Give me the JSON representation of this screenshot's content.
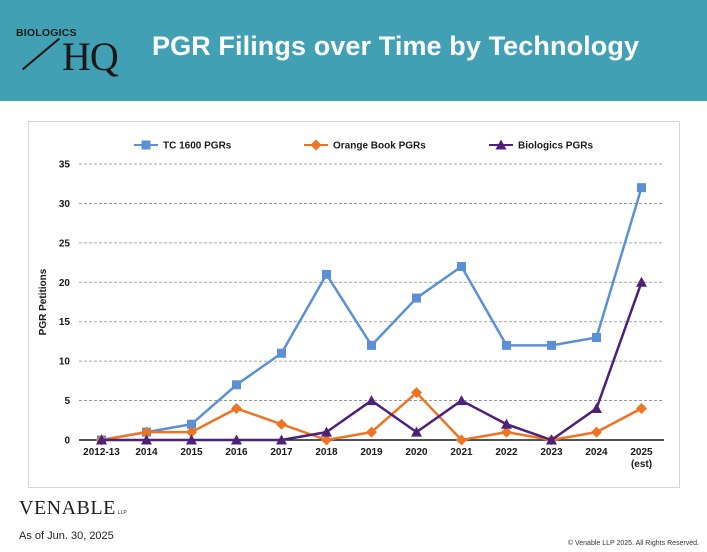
{
  "header": {
    "logo_small": "BIOLOGICS",
    "logo_big": "HQ",
    "title": "PGR Filings over Time by Technology",
    "background_color": "#41a0b4"
  },
  "footer": {
    "firm_name": "VENABLE",
    "firm_suffix": "LLP",
    "as_of": "As of Jun. 30, 2025",
    "copyright": "© Venable LLP 2025. All Rights Reserved."
  },
  "chart_data": {
    "type": "line",
    "title": "",
    "xlabel": "",
    "ylabel": "PGR Petitions",
    "categories": [
      "2012-13",
      "2014",
      "2015",
      "2016",
      "2017",
      "2018",
      "2019",
      "2020",
      "2021",
      "2022",
      "2023",
      "2024",
      "2025 (est)"
    ],
    "ylim": [
      0,
      35
    ],
    "yticks": [
      0,
      5,
      10,
      15,
      20,
      25,
      30,
      35
    ],
    "grid": true,
    "legend_position": "top",
    "series": [
      {
        "name": "TC 1600 PGRs",
        "color": "#5b8fd6",
        "marker": "square",
        "values": [
          0,
          1,
          2,
          7,
          11,
          21,
          12,
          18,
          22,
          12,
          12,
          13,
          32
        ]
      },
      {
        "name": "Orange Book PGRs",
        "color": "#ee7423",
        "marker": "diamond",
        "values": [
          0,
          1,
          1,
          4,
          2,
          0,
          1,
          6,
          0,
          1,
          0,
          1,
          4
        ]
      },
      {
        "name": "Biologics PGRs",
        "color": "#4d2178",
        "marker": "triangle",
        "values": [
          0,
          0,
          0,
          0,
          0,
          1,
          5,
          1,
          5,
          2,
          0,
          4,
          20
        ]
      }
    ]
  }
}
